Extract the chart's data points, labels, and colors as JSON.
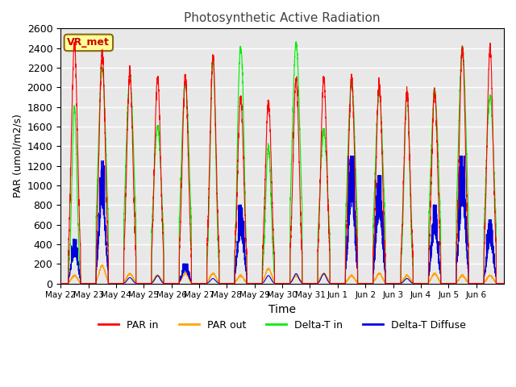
{
  "title": "Photosynthetic Active Radiation",
  "xlabel": "Time",
  "ylabel": "PAR (umol/m2/s)",
  "ylim": [
    0,
    2600
  ],
  "yticks": [
    0,
    200,
    400,
    600,
    800,
    1000,
    1200,
    1400,
    1600,
    1800,
    2000,
    2200,
    2400,
    2600
  ],
  "xtick_labels": [
    "May 22",
    "May 23",
    "May 24",
    "May 25",
    "May 26",
    "May 27",
    "May 28",
    "May 29",
    "May 30",
    "May 31",
    "Jun 1",
    "Jun 2",
    "Jun 3",
    "Jun 4",
    "Jun 5",
    "Jun 6"
  ],
  "annotation_text": "VR_met",
  "annotation_bg": "#FFFF99",
  "annotation_border": "#8B6914",
  "colors": {
    "PAR_in": "#FF0000",
    "PAR_out": "#FFA500",
    "Delta_T_in": "#00EE00",
    "Delta_T_Diffuse": "#0000DD"
  },
  "background_color": "#E8E8E8",
  "grid_color": "#FFFFFF",
  "n_days": 16,
  "points_per_day": 288
}
